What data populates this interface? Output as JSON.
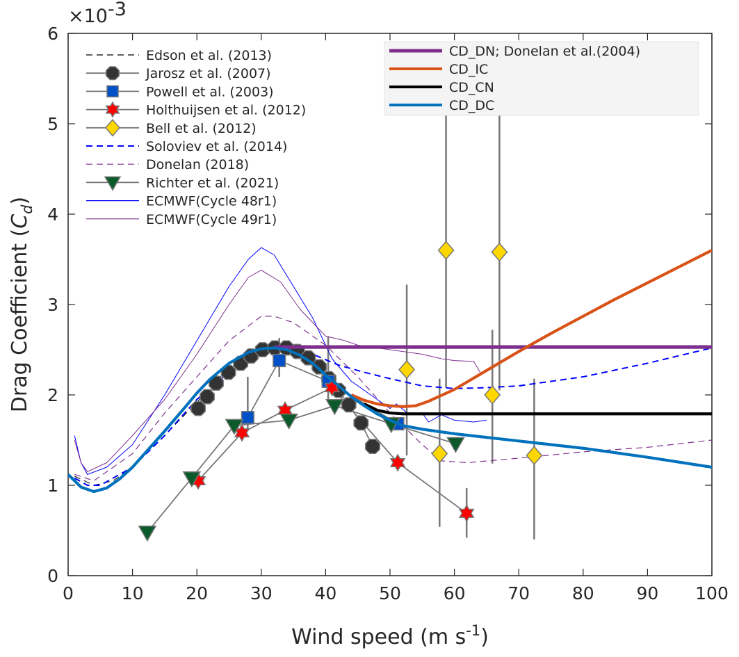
{
  "chart_data": {
    "type": "line",
    "title": "",
    "exponent_label": "×10",
    "exponent_power": "-3",
    "xlabel": "Wind speed (m s",
    "xlabel_sup": "-1",
    "xlabel_end": ")",
    "ylabel": "Drag Coefficient (",
    "ylabel_var": "C",
    "ylabel_sub": "d",
    "ylabel_end": ")",
    "xlim": [
      0,
      100
    ],
    "ylim": [
      0,
      6
    ],
    "xticks": [
      0,
      10,
      20,
      30,
      40,
      50,
      60,
      70,
      80,
      90,
      100
    ],
    "yticks": [
      0,
      1,
      2,
      3,
      4,
      5,
      6
    ],
    "grid": false,
    "legend_left": "top-left",
    "legend_right": "top-right",
    "series": [
      {
        "name": "Edson et al. (2013)",
        "style": "dashed",
        "color": "#000000",
        "width": 1,
        "legend": "left",
        "points": [
          [
            1,
            1.1
          ],
          [
            4,
            1.0
          ],
          [
            7,
            1.05
          ],
          [
            10,
            1.2
          ],
          [
            15,
            1.55
          ],
          [
            20,
            1.92
          ],
          [
            25,
            2.3
          ]
        ]
      },
      {
        "name": "Jarosz et al. (2007)",
        "marker": "octagon",
        "color": "#333333",
        "legend": "left",
        "points": [
          [
            20.2,
            1.85
          ],
          [
            21.6,
            1.98
          ],
          [
            23.0,
            2.13
          ],
          [
            24.9,
            2.25
          ],
          [
            26.8,
            2.35
          ],
          [
            28.4,
            2.43
          ],
          [
            30.2,
            2.5
          ],
          [
            32.1,
            2.52
          ],
          [
            33.9,
            2.52
          ],
          [
            35.6,
            2.48
          ],
          [
            37.3,
            2.41
          ],
          [
            39.0,
            2.31
          ],
          [
            40.5,
            2.18
          ],
          [
            42.0,
            2.05
          ],
          [
            43.6,
            1.89
          ],
          [
            45.5,
            1.69
          ],
          [
            47.3,
            1.43
          ]
        ]
      },
      {
        "name": "Powell et al. (2003)",
        "marker": "square",
        "color": "#0050c8",
        "legend": "left",
        "points": [
          [
            27.9,
            1.75
          ],
          [
            32.8,
            2.38
          ],
          [
            40.4,
            2.15
          ],
          [
            51.2,
            1.68
          ]
        ],
        "errors": [
          [
            27.9,
            1.6,
            2.2
          ],
          [
            32.8,
            2.2,
            2.63
          ],
          [
            40.4,
            1.95,
            2.65
          ]
        ]
      },
      {
        "name": "Holthuijsen et al. (2012)",
        "marker": "hexagram",
        "color": "#ff0000",
        "legend": "left",
        "points": [
          [
            20.2,
            1.05
          ],
          [
            27.0,
            1.58
          ],
          [
            33.7,
            1.83
          ],
          [
            41.0,
            2.08
          ],
          [
            51.2,
            1.25
          ],
          [
            61.9,
            0.69
          ]
        ],
        "errors": [
          [
            61.9,
            0.42,
            0.97
          ]
        ]
      },
      {
        "name": "Bell et al. (2012)",
        "marker": "diamond",
        "color": "#ffd700",
        "legend": "left",
        "nolines": true,
        "points": [
          [
            52.6,
            2.28
          ],
          [
            58.7,
            3.6
          ],
          [
            67.0,
            3.58
          ],
          [
            57.7,
            1.35
          ],
          [
            65.9,
            2.0
          ],
          [
            72.4,
            1.33
          ]
        ],
        "errors": [
          [
            52.6,
            1.33,
            3.22
          ],
          [
            58.7,
            2.08,
            5.2
          ],
          [
            67.0,
            2.05,
            5.2
          ],
          [
            57.7,
            0.54,
            2.18
          ],
          [
            65.9,
            1.24,
            2.72
          ],
          [
            72.4,
            0.4,
            2.18
          ]
        ]
      },
      {
        "name": "Soloviev et al. (2014)",
        "style": "dashed",
        "color": "#0000ff",
        "width": 2,
        "legend": "left",
        "points": [
          [
            1,
            1.08
          ],
          [
            3,
            1.0
          ],
          [
            5,
            1.0
          ],
          [
            10,
            1.2
          ],
          [
            15,
            1.55
          ],
          [
            20,
            1.95
          ],
          [
            25,
            2.25
          ],
          [
            30,
            2.45
          ],
          [
            34,
            2.5
          ],
          [
            38,
            2.45
          ],
          [
            42,
            2.33
          ],
          [
            46,
            2.25
          ],
          [
            50,
            2.18
          ],
          [
            55,
            2.1
          ],
          [
            60,
            2.07
          ],
          [
            65,
            2.08
          ],
          [
            70,
            2.1
          ],
          [
            80,
            2.2
          ],
          [
            90,
            2.35
          ],
          [
            100,
            2.52
          ]
        ]
      },
      {
        "name": "Donelan (2018)",
        "style": "dashed",
        "color": "#7e2f8e",
        "width": 1.2,
        "legend": "left",
        "points": [
          [
            1,
            1.12
          ],
          [
            4,
            1.05
          ],
          [
            10,
            1.35
          ],
          [
            15,
            1.8
          ],
          [
            20,
            2.2
          ],
          [
            25,
            2.6
          ],
          [
            30,
            2.87
          ],
          [
            32,
            2.87
          ],
          [
            35,
            2.8
          ],
          [
            40,
            2.55
          ],
          [
            45,
            2.2
          ],
          [
            50,
            1.8
          ],
          [
            55,
            1.45
          ],
          [
            58,
            1.27
          ],
          [
            62,
            1.25
          ],
          [
            70,
            1.3
          ],
          [
            80,
            1.37
          ],
          [
            90,
            1.42
          ],
          [
            100,
            1.5
          ]
        ]
      },
      {
        "name": "Richter et al. (2021)",
        "marker": "triangle-down",
        "color": "#0b5a2b",
        "legend": "left",
        "points": [
          [
            12.3,
            0.48
          ],
          [
            19.2,
            1.08
          ],
          [
            25.8,
            1.66
          ],
          [
            34.3,
            1.72
          ],
          [
            41.4,
            1.88
          ],
          [
            50.2,
            1.68
          ],
          [
            60.2,
            1.46
          ]
        ]
      },
      {
        "name": "ECMWF(Cycle 48r1)",
        "style": "solid",
        "color": "#0000ff",
        "width": 1,
        "legend": "left",
        "points": [
          [
            1,
            1.55
          ],
          [
            2,
            1.25
          ],
          [
            3,
            1.12
          ],
          [
            6,
            1.2
          ],
          [
            10,
            1.45
          ],
          [
            15,
            2.0
          ],
          [
            20,
            2.6
          ],
          [
            25,
            3.2
          ],
          [
            28,
            3.5
          ],
          [
            30,
            3.63
          ],
          [
            32,
            3.55
          ],
          [
            35,
            3.2
          ],
          [
            38,
            2.85
          ],
          [
            41,
            2.4
          ],
          [
            44,
            2.15
          ],
          [
            47,
            2.0
          ],
          [
            50,
            1.85
          ],
          [
            51,
            1.9
          ],
          [
            53,
            1.78
          ],
          [
            55,
            1.8
          ],
          [
            56,
            1.7
          ],
          [
            58,
            1.78
          ],
          [
            60,
            1.72
          ],
          [
            63,
            1.7
          ],
          [
            65,
            1.72
          ]
        ]
      },
      {
        "name": "ECMWF(Cycle 49r1)",
        "style": "solid",
        "color": "#7e2f8e",
        "width": 1,
        "legend": "left",
        "points": [
          [
            1,
            1.5
          ],
          [
            2,
            1.25
          ],
          [
            3,
            1.15
          ],
          [
            6,
            1.25
          ],
          [
            10,
            1.55
          ],
          [
            15,
            1.95
          ],
          [
            20,
            2.45
          ],
          [
            25,
            3.0
          ],
          [
            28,
            3.3
          ],
          [
            30,
            3.38
          ],
          [
            33,
            3.25
          ],
          [
            36,
            2.95
          ],
          [
            40,
            2.65
          ],
          [
            43,
            2.6
          ],
          [
            45,
            2.55
          ],
          [
            48,
            2.52
          ],
          [
            50,
            2.5
          ],
          [
            53,
            2.47
          ],
          [
            55,
            2.45
          ],
          [
            58,
            2.4
          ],
          [
            60,
            2.38
          ],
          [
            63,
            2.37
          ],
          [
            64,
            2.25
          ]
        ]
      },
      {
        "name": "CD_DN; Donelan et al.(2004)",
        "style": "solid",
        "color": "#7e2f8e",
        "width": 5,
        "legend": "right",
        "points": [
          [
            32,
            2.53
          ],
          [
            100,
            2.53
          ]
        ]
      },
      {
        "name": "CD_IC",
        "style": "solid",
        "color": "#d95319",
        "width": 4,
        "legend": "right",
        "points": [
          [
            44,
            2.0
          ],
          [
            46,
            1.94
          ],
          [
            48,
            1.9
          ],
          [
            50,
            1.88
          ],
          [
            52,
            1.87
          ],
          [
            54,
            1.88
          ],
          [
            56,
            1.93
          ],
          [
            60,
            2.06
          ],
          [
            65,
            2.27
          ],
          [
            70,
            2.48
          ],
          [
            75,
            2.68
          ],
          [
            80,
            2.87
          ],
          [
            85,
            3.06
          ],
          [
            90,
            3.24
          ],
          [
            95,
            3.42
          ],
          [
            100,
            3.6
          ]
        ]
      },
      {
        "name": "CD_CN",
        "style": "solid",
        "color": "#000000",
        "width": 4,
        "legend": "right",
        "points": [
          [
            46,
            1.9
          ],
          [
            48,
            1.83
          ],
          [
            50,
            1.8
          ],
          [
            52,
            1.79
          ],
          [
            100,
            1.79
          ]
        ]
      },
      {
        "name": "CD_DC",
        "style": "solid",
        "color": "#0072bd",
        "width": 4,
        "legend": "right",
        "points": [
          [
            0,
            1.12
          ],
          [
            2,
            0.98
          ],
          [
            4,
            0.93
          ],
          [
            6,
            0.97
          ],
          [
            8,
            1.07
          ],
          [
            10,
            1.2
          ],
          [
            12,
            1.36
          ],
          [
            15,
            1.6
          ],
          [
            18,
            1.85
          ],
          [
            20,
            2.02
          ],
          [
            22,
            2.17
          ],
          [
            25,
            2.35
          ],
          [
            28,
            2.47
          ],
          [
            30,
            2.51
          ],
          [
            32,
            2.52
          ],
          [
            34,
            2.5
          ],
          [
            36,
            2.44
          ],
          [
            38,
            2.35
          ],
          [
            40,
            2.22
          ],
          [
            42,
            2.1
          ],
          [
            44,
            1.98
          ],
          [
            46,
            1.88
          ],
          [
            48,
            1.79
          ],
          [
            50,
            1.72
          ],
          [
            52,
            1.66
          ],
          [
            55,
            1.62
          ],
          [
            60,
            1.57
          ],
          [
            70,
            1.49
          ],
          [
            80,
            1.41
          ],
          [
            90,
            1.31
          ],
          [
            100,
            1.2
          ]
        ]
      }
    ]
  }
}
